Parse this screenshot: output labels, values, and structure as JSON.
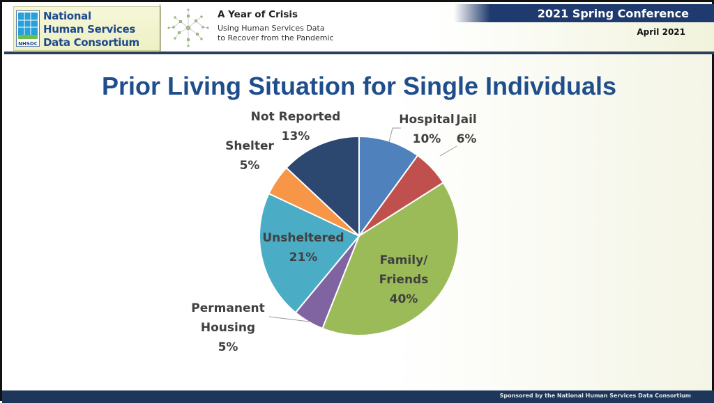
{
  "header": {
    "logo_lines": [
      "National",
      "Human Services",
      "Data Consortium"
    ],
    "logo_mark": "NHSDC",
    "crisis_title": "A Year of Crisis",
    "crisis_sub": [
      "Using Human Services Data",
      "to Recover from the Pandemic"
    ],
    "conference": "2021 Spring Conference",
    "date": "April 2021"
  },
  "slide": {
    "title": "Prior Living Situation for Single Individuals"
  },
  "footer": {
    "text": "Sponsored by the National Human  Services Data Consortium"
  },
  "chart_data": {
    "type": "pie",
    "title": "Prior Living Situation for Single Individuals",
    "start_angle_deg": 0,
    "direction": "clockwise",
    "slices": [
      {
        "label": "Hospital",
        "value": 10,
        "display": "10%",
        "color": "#4f81bd"
      },
      {
        "label": "Jail",
        "value": 6,
        "display": "6%",
        "color": "#c0504d"
      },
      {
        "label": "Family/ Friends",
        "value": 40,
        "display": "40%",
        "color": "#9bbb59"
      },
      {
        "label": "Permanent Housing",
        "value": 5,
        "display": "5%",
        "color": "#8064a2"
      },
      {
        "label": "Unsheltered",
        "value": 21,
        "display": "21%",
        "color": "#4bacc6"
      },
      {
        "label": "Shelter",
        "value": 5,
        "display": "5%",
        "color": "#f79646"
      },
      {
        "label": "Not Reported",
        "value": 13,
        "display": "13%",
        "color": "#2c4770"
      }
    ],
    "label_lines": {
      "Hospital": [
        "Hospital",
        "10%"
      ],
      "Jail": [
        "Jail",
        "6%"
      ],
      "Family/ Friends": [
        "Family/",
        "Friends",
        "40%"
      ],
      "Permanent Housing": [
        "Permanent",
        "Housing",
        "5%"
      ],
      "Unsheltered": [
        "Unsheltered",
        "21%"
      ],
      "Shelter": [
        "Shelter",
        "5%"
      ],
      "Not Reported": [
        "Not Reported",
        "13%"
      ]
    },
    "legend": "none"
  }
}
